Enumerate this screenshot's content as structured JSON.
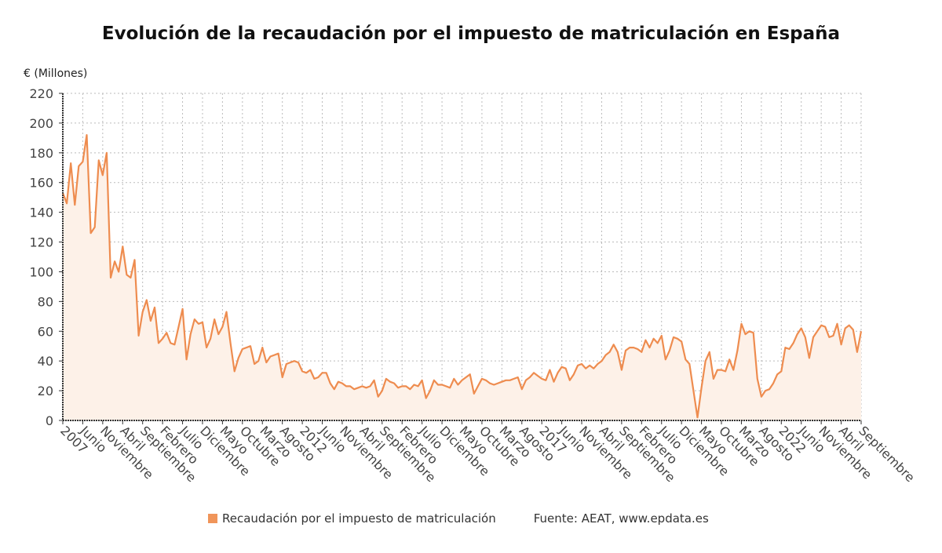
{
  "chart_data": {
    "type": "area",
    "title": "Evolución de la recaudación por el impuesto de matriculación en España",
    "ylabel": "€ (Millones)",
    "xlabel": "",
    "ylim": [
      0,
      220
    ],
    "yticks": [
      0,
      20,
      40,
      60,
      80,
      100,
      120,
      140,
      160,
      180,
      200,
      220
    ],
    "grid": true,
    "x_start": "2007-01",
    "x_end": "2023-09",
    "frequency": "monthly",
    "xtick_step_months": 5,
    "xtick_labels": [
      "2007",
      "Junio",
      "Noviembre",
      "Abril",
      "Septiembre",
      "Febrero",
      "Julio",
      "Diciembre",
      "Mayo",
      "Octubre",
      "Marzo",
      "Agosto",
      "2012",
      "Junio",
      "Noviembre",
      "Abril",
      "Septiembre",
      "Febrero",
      "Julio",
      "Diciembre",
      "Mayo",
      "Octubre",
      "Marzo",
      "Agosto",
      "2017",
      "Junio",
      "Noviembre",
      "Abril",
      "Septiembre",
      "Febrero",
      "Julio",
      "Diciembre",
      "Mayo",
      "Octubre",
      "Marzo",
      "Agosto",
      "2022",
      "Junio",
      "Noviembre",
      "Abril",
      "Septiembre"
    ],
    "series": [
      {
        "name": "Recaudación por el impuesto de matriculación",
        "color": "#ee8c4f",
        "values": [
          153,
          146,
          173,
          145,
          171,
          174,
          192,
          126,
          130,
          175,
          165,
          180,
          96,
          107,
          100,
          117,
          98,
          96,
          108,
          57,
          73,
          81,
          67,
          76,
          52,
          55,
          59,
          52,
          51,
          63,
          75,
          41,
          58,
          68,
          65,
          66,
          49,
          55,
          68,
          58,
          63,
          73,
          52,
          33,
          42,
          48,
          49,
          50,
          38,
          40,
          49,
          39,
          43,
          44,
          45,
          29,
          38,
          39,
          40,
          39,
          33,
          32,
          34,
          28,
          29,
          32,
          32,
          25,
          21,
          26,
          25,
          23,
          23,
          21,
          22,
          23,
          22,
          23,
          27,
          16,
          20,
          28,
          26,
          25,
          22,
          23,
          23,
          21,
          24,
          23,
          27,
          15,
          20,
          27,
          24,
          24,
          23,
          22,
          28,
          24,
          27,
          29,
          31,
          18,
          23,
          28,
          27,
          25,
          24,
          25,
          26,
          27,
          27,
          28,
          29,
          21,
          27,
          29,
          32,
          30,
          28,
          27,
          34,
          26,
          32,
          36,
          35,
          27,
          31,
          37,
          38,
          35,
          37,
          35,
          38,
          40,
          44,
          46,
          51,
          46,
          34,
          47,
          49,
          49,
          48,
          46,
          54,
          49,
          55,
          52,
          57,
          41,
          47,
          56,
          55,
          53,
          41,
          38,
          20,
          2,
          22,
          40,
          46,
          28,
          34,
          34,
          33,
          41,
          34,
          47,
          65,
          58,
          60,
          59,
          28,
          16,
          20,
          21,
          25,
          31,
          33,
          49,
          48,
          52,
          58,
          62,
          56,
          42,
          56,
          60,
          64,
          63,
          56,
          57,
          65,
          51,
          62,
          64,
          61,
          46,
          60
        ]
      }
    ],
    "legend_position": "bottom",
    "source": "Fuente: AEAT, www.epdata.es"
  },
  "colors": {
    "line": "#ee8c4f",
    "fill": "#fdf1e8",
    "legend": "#f0955a"
  }
}
